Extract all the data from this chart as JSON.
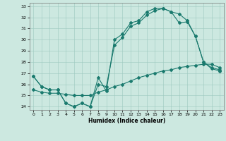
{
  "xlabel": "Humidex (Indice chaleur)",
  "xlim": [
    -0.5,
    23.5
  ],
  "ylim": [
    23.7,
    33.3
  ],
  "yticks": [
    24,
    25,
    26,
    27,
    28,
    29,
    30,
    31,
    32,
    33
  ],
  "xticks": [
    0,
    1,
    2,
    3,
    4,
    5,
    6,
    7,
    8,
    9,
    10,
    11,
    12,
    13,
    14,
    15,
    16,
    17,
    18,
    19,
    20,
    21,
    22,
    23
  ],
  "bg_color": "#cce8e0",
  "line_color": "#1a7a6e",
  "line1_x": [
    0,
    1,
    2,
    3,
    4,
    5,
    6,
    7,
    8,
    9,
    10,
    11,
    12,
    13,
    14,
    15,
    16,
    17,
    18,
    19,
    20,
    21,
    22,
    23
  ],
  "line1_y": [
    26.7,
    25.8,
    25.5,
    25.5,
    24.3,
    24.0,
    24.3,
    24.0,
    26.6,
    25.4,
    30.0,
    30.5,
    31.5,
    31.7,
    32.5,
    32.8,
    32.8,
    32.5,
    32.3,
    31.7,
    30.3,
    28.0,
    27.5,
    27.3
  ],
  "line2_x": [
    0,
    1,
    2,
    3,
    4,
    5,
    6,
    7,
    8,
    9,
    10,
    11,
    12,
    13,
    14,
    15,
    16,
    17,
    18,
    19,
    20,
    21,
    22,
    23
  ],
  "line2_y": [
    25.5,
    25.3,
    25.2,
    25.2,
    25.1,
    25.0,
    25.0,
    25.0,
    25.3,
    25.5,
    25.8,
    26.0,
    26.3,
    26.6,
    26.8,
    27.0,
    27.2,
    27.3,
    27.5,
    27.6,
    27.7,
    27.8,
    27.8,
    27.5
  ],
  "line3_x": [
    0,
    1,
    2,
    3,
    4,
    5,
    6,
    7,
    8,
    9,
    10,
    11,
    12,
    13,
    14,
    15,
    16,
    17,
    18,
    19,
    20,
    21,
    22,
    23
  ],
  "line3_y": [
    26.7,
    25.8,
    25.5,
    25.5,
    24.3,
    24.0,
    24.3,
    24.0,
    26.0,
    25.8,
    29.5,
    30.2,
    31.2,
    31.5,
    32.2,
    32.6,
    32.8,
    32.5,
    31.5,
    31.6,
    30.3,
    28.0,
    27.4,
    27.2
  ]
}
